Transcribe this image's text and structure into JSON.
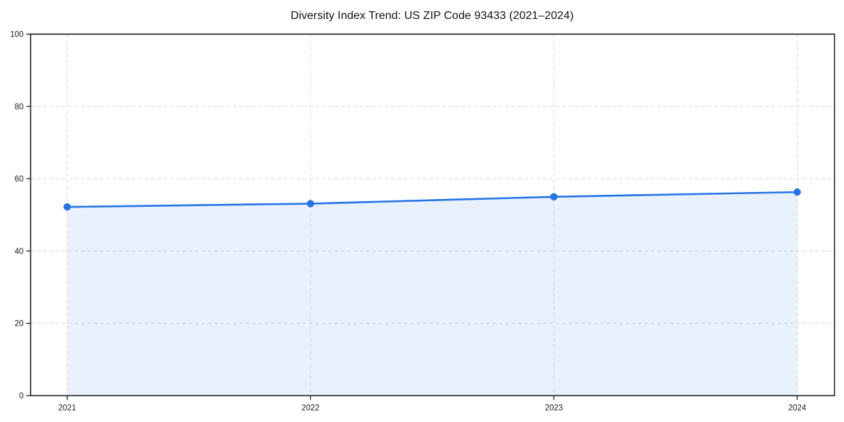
{
  "chart_data": {
    "type": "line",
    "title": "Diversity Index Trend: US ZIP Code 93433 (2021–2024)",
    "categories": [
      "2021",
      "2022",
      "2023",
      "2024"
    ],
    "x": [
      2021,
      2022,
      2023,
      2024
    ],
    "series": [
      {
        "name": "Diversity Index",
        "values": [
          52.2,
          53.1,
          55.0,
          56.3
        ]
      }
    ],
    "xlabel": "",
    "ylabel": "",
    "ylim": [
      0,
      100
    ],
    "yticks": [
      0,
      20,
      40,
      60,
      80,
      100
    ],
    "grid": true,
    "grid_style": "dashed",
    "legend_position": "none",
    "marker": "circle",
    "area_fill": true,
    "colors": {
      "line": "#2273e6",
      "marker": "#2273e6",
      "fill": "rgba(34, 115, 230, 0.10)",
      "grid": "#d9d9d9",
      "spine": "#1a1a1a",
      "text": "#1a1a1a",
      "background": "#ffffff"
    }
  }
}
